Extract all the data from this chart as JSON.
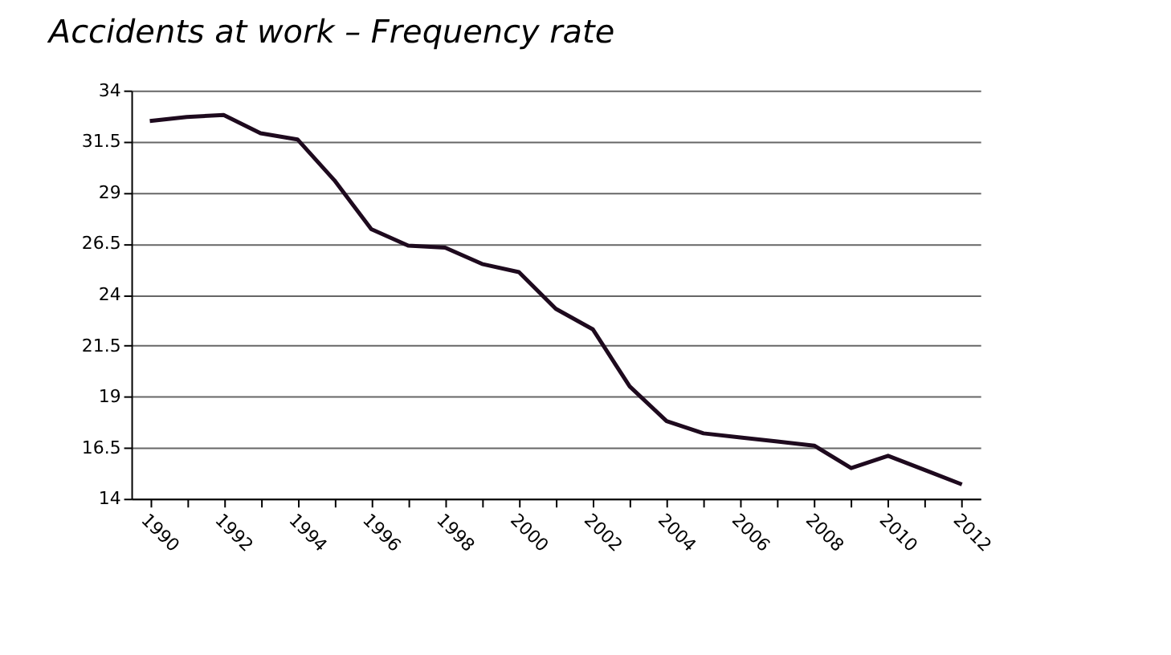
{
  "chart_data": {
    "type": "line",
    "title": "Accidents at work – Frequency rate",
    "categories": [
      "1990",
      null,
      "1992",
      null,
      "1994",
      null,
      "1996",
      null,
      "1998",
      null,
      "2000",
      null,
      "2002",
      null,
      "2004",
      null,
      "2006",
      null,
      "2008",
      null,
      "2010",
      null,
      "2012"
    ],
    "series": [
      {
        "color": "#1e0a1e",
        "values": [
          32.5,
          32.7,
          32.8,
          31.9,
          31.6,
          29.6,
          27.2,
          26.4,
          26.3,
          25.5,
          25.1,
          23.3,
          22.3,
          19.5,
          17.8,
          17.2,
          17.0,
          16.8,
          16.6,
          15.5,
          16.1,
          15.4,
          14.7
        ]
      }
    ],
    "ylim": [
      14,
      34
    ],
    "yticks": [
      14,
      16.5,
      19,
      21.5,
      24,
      26.5,
      29,
      31.5,
      34
    ],
    "grid": "y",
    "marker": "none",
    "line_style": "solid"
  }
}
